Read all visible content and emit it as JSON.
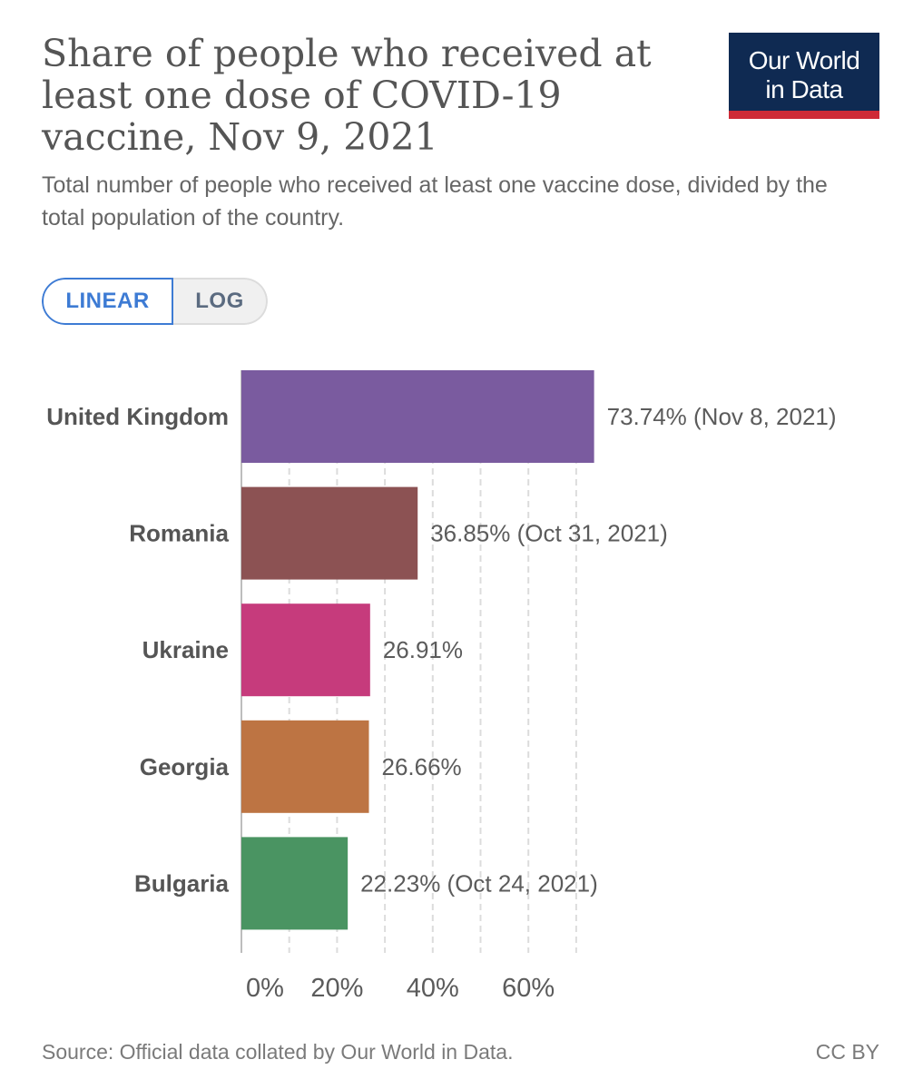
{
  "header": {
    "title": "Share of people who received at least one dose of COVID-19 vaccine, Nov 9, 2021",
    "subtitle": "Total number of people who received at least one vaccine dose, divided by the total population of the country.",
    "logo_line1": "Our World",
    "logo_line2": "in Data"
  },
  "scale_toggle": {
    "linear_label": "LINEAR",
    "log_label": "LOG",
    "selected": "linear"
  },
  "chart_data": {
    "type": "bar",
    "orientation": "horizontal",
    "categories": [
      "United Kingdom",
      "Romania",
      "Ukraine",
      "Georgia",
      "Bulgaria"
    ],
    "values": [
      73.74,
      36.85,
      26.91,
      26.66,
      22.23
    ],
    "value_labels": [
      "73.74% (Nov 8, 2021)",
      "36.85% (Oct 31, 2021)",
      "26.91%",
      "26.66%",
      "22.23% (Oct 24, 2021)"
    ],
    "colors": [
      "#7a5b9f",
      "#8c5253",
      "#c63b7c",
      "#bd7443",
      "#4a9462"
    ],
    "x_ticks": [
      0,
      20,
      40,
      60
    ],
    "x_tick_labels": [
      "0%",
      "20%",
      "40%",
      "60%"
    ],
    "xlim": [
      0,
      80
    ],
    "grid": "vertical dashed"
  },
  "footer": {
    "source": "Source: Official data collated by Our World in Data.",
    "license": "CC BY"
  }
}
